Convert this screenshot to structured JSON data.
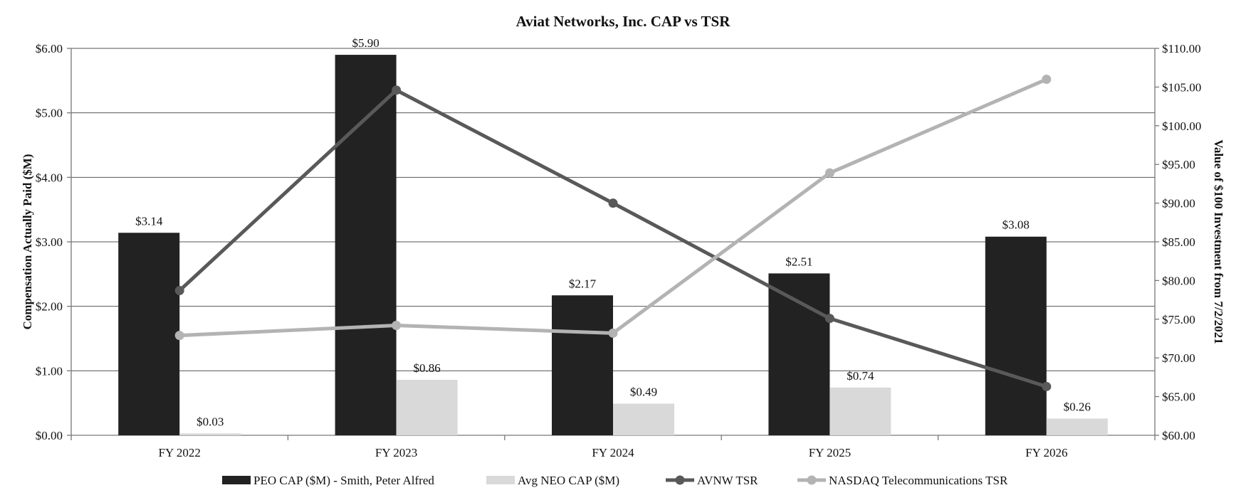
{
  "chart_data": {
    "type": "bar",
    "title": "Aviat Networks, Inc. CAP vs TSR",
    "categories": [
      "FY 2022",
      "FY 2023",
      "FY 2024",
      "FY 2025",
      "FY 2026"
    ],
    "y_left": {
      "label": "Compensation Actually Paid ($M)",
      "min": 0,
      "max": 6,
      "step": 1,
      "ticks": [
        "$0.00",
        "$1.00",
        "$2.00",
        "$3.00",
        "$4.00",
        "$5.00",
        "$6.00"
      ]
    },
    "y_right": {
      "label": "Value of $100 Investment from 7/2/2021",
      "min": 60,
      "max": 110,
      "step": 5,
      "ticks": [
        "$60.00",
        "$65.00",
        "$70.00",
        "$75.00",
        "$80.00",
        "$85.00",
        "$90.00",
        "$95.00",
        "$100.00",
        "$105.00",
        "$110.00"
      ]
    },
    "grid": true,
    "legend_position": "bottom",
    "series": [
      {
        "name": "PEO CAP ($M) - Smith, Peter Alfred",
        "kind": "bar",
        "axis": "left",
        "color": "#222222",
        "values": [
          3.14,
          5.9,
          2.17,
          2.51,
          3.08
        ],
        "labels": [
          "$3.14",
          "$5.90",
          "$2.17",
          "$2.51",
          "$3.08"
        ]
      },
      {
        "name": "Avg NEO CAP ($M)",
        "kind": "bar",
        "axis": "left",
        "color": "#d9d9d9",
        "values": [
          0.03,
          0.86,
          0.49,
          0.74,
          0.26
        ],
        "labels": [
          "$0.03",
          "$0.86",
          "$0.49",
          "$0.74",
          "$0.26"
        ]
      },
      {
        "name": "AVNW TSR",
        "kind": "line",
        "axis": "right",
        "color": "#595959",
        "values": [
          78.7,
          104.6,
          90.0,
          75.1,
          66.3
        ]
      },
      {
        "name": "NASDAQ Telecommunications TSR",
        "kind": "line",
        "axis": "right",
        "color": "#b3b3b3",
        "values": [
          72.9,
          74.2,
          73.2,
          93.9,
          106.0
        ]
      }
    ]
  }
}
